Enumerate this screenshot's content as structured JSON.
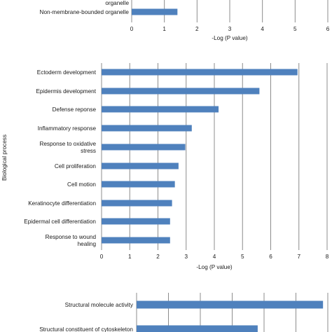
{
  "chart_data": [
    {
      "type": "bar",
      "orientation": "horizontal",
      "categories": [
        "organelle",
        "Non-membrane-bounded organelle"
      ],
      "values": [
        null,
        1.4
      ],
      "xlabel": "-Log (P value)",
      "ylabel": "",
      "xlim": [
        0,
        6
      ],
      "xticks": [
        0,
        1,
        2,
        3,
        4,
        5,
        6
      ],
      "grid": true,
      "color": "#4f81bd"
    },
    {
      "type": "bar",
      "orientation": "horizontal",
      "categories": [
        "Ectoderm development",
        "Epidermis development",
        "Defense reponse",
        "Inflammatory response",
        "Response to oxidative stress",
        "Cell proliferation",
        "Cell motion",
        "Keratinocyte differentiation",
        "Epidermal cell differentiation",
        "Response to wound healing"
      ],
      "values": [
        6.95,
        5.6,
        4.15,
        3.2,
        2.97,
        2.73,
        2.6,
        2.5,
        2.43,
        2.43
      ],
      "xlabel": "-Log (P value)",
      "ylabel": "Biological process",
      "xlim": [
        0,
        8
      ],
      "xticks": [
        0,
        1,
        2,
        3,
        4,
        5,
        6,
        7,
        8
      ],
      "grid": true,
      "color": "#4f81bd"
    },
    {
      "type": "bar",
      "orientation": "horizontal",
      "categories": [
        "Structural molecule activity",
        "Structural constituent of cytoskeleton"
      ],
      "values": [
        5.85,
        3.8
      ],
      "xlabel": "",
      "ylabel": "",
      "xlim": [
        0,
        6
      ],
      "xticks": [
        0,
        1,
        2,
        3,
        4,
        5,
        6
      ],
      "grid": true,
      "color": "#4f81bd"
    }
  ]
}
